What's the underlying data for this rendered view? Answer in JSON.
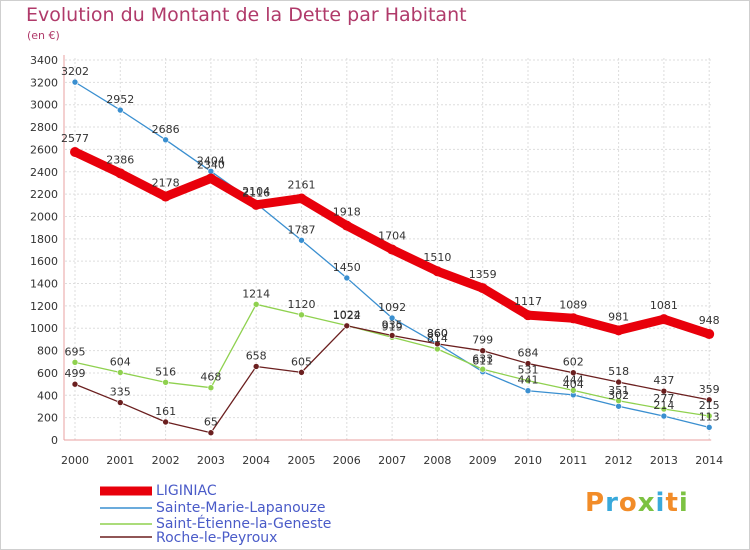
{
  "title": "Evolution du Montant de la Dette par Habitant",
  "subtitle": "(en €)",
  "logo": {
    "text": "Proxiti",
    "colors": [
      "#f28c28",
      "#39a9db",
      "#f28c28",
      "#7cc242",
      "#39a9db",
      "#f28c28",
      "#7cc242"
    ]
  },
  "chart_data": {
    "type": "line",
    "x": [
      "2000",
      "2001",
      "2002",
      "2003",
      "2004",
      "2005",
      "2006",
      "2007",
      "2008",
      "2009",
      "2010",
      "2011",
      "2012",
      "2013",
      "2014"
    ],
    "ylim": [
      0,
      3400
    ],
    "yticks": [
      0,
      200,
      400,
      600,
      800,
      1000,
      1200,
      1400,
      1600,
      1800,
      2000,
      2200,
      2400,
      2600,
      2800,
      3000,
      3200,
      3400
    ],
    "grid": true,
    "legend_position": "bottom-left",
    "series": [
      {
        "name": "LIGINIAC",
        "color": "#e8000b",
        "values": [
          2577,
          2386,
          2178,
          2340,
          2104,
          2161,
          1918,
          1704,
          1510,
          1359,
          1117,
          1089,
          981,
          1081,
          948
        ]
      },
      {
        "name": "Sainte-Marie-Lapanouze",
        "color": "#3a8fd0",
        "values": [
          3202,
          2952,
          2686,
          2404,
          2116,
          1787,
          1450,
          1092,
          860,
          611,
          441,
          404,
          302,
          214,
          113
        ]
      },
      {
        "name": "Saint-Étienne-la-Geneste",
        "color": "#8fd14f",
        "values": [
          695,
          604,
          516,
          468,
          1214,
          1120,
          1024,
          919,
          814,
          633,
          531,
          444,
          351,
          277,
          215
        ]
      },
      {
        "name": "Roche-le-Peyroux",
        "color": "#6b1f1f",
        "values": [
          499,
          335,
          161,
          65,
          658,
          605,
          1022,
          935,
          860,
          799,
          684,
          602,
          518,
          437,
          359
        ]
      }
    ]
  }
}
